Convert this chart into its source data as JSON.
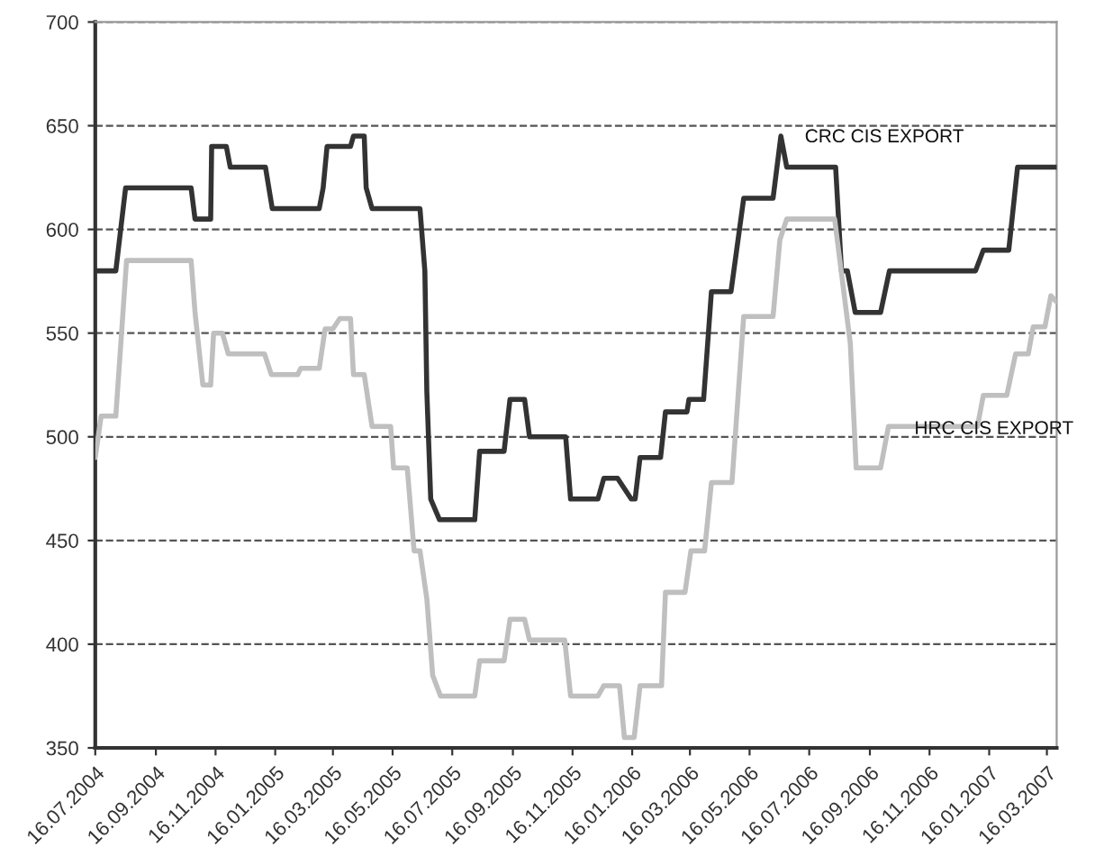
{
  "chart_data": {
    "type": "line",
    "xlim": [
      "2004-07-16",
      "2007-03-26"
    ],
    "ylim": [
      350,
      700
    ],
    "yticks": [
      350,
      400,
      450,
      500,
      550,
      600,
      650,
      700
    ],
    "xticks": [
      {
        "value": "2004-07-16",
        "label": "16.07.2004"
      },
      {
        "value": "2004-09-16",
        "label": "16.09.2004"
      },
      {
        "value": "2004-11-16",
        "label": "16.11.2004"
      },
      {
        "value": "2005-01-16",
        "label": "16.01.2005"
      },
      {
        "value": "2005-03-16",
        "label": "16.03.2005"
      },
      {
        "value": "2005-05-16",
        "label": "16.05.2005"
      },
      {
        "value": "2005-07-16",
        "label": "16.07.2005"
      },
      {
        "value": "2005-09-16",
        "label": "16.09.2005"
      },
      {
        "value": "2005-11-16",
        "label": "16.11.2005"
      },
      {
        "value": "2006-01-16",
        "label": "16.01.2006"
      },
      {
        "value": "2006-03-16",
        "label": "16.03.2006"
      },
      {
        "value": "2006-05-16",
        "label": "16.05.2006"
      },
      {
        "value": "2006-07-16",
        "label": "16.07.2006"
      },
      {
        "value": "2006-09-16",
        "label": "16.09.2006"
      },
      {
        "value": "2006-11-16",
        "label": "16.11.2006"
      },
      {
        "value": "2007-01-16",
        "label": "16.01.2007"
      },
      {
        "value": "2007-03-16",
        "label": "16.03.2007"
      }
    ],
    "grid": "y",
    "legend": false,
    "marker": "none",
    "line_style": "solid",
    "annotations": [
      "CRC CIS EXPORT",
      "HRC CIS EXPORT"
    ],
    "series": [
      {
        "color": "#333333",
        "x": [
          "2004-07-16",
          "2004-08-06",
          "2004-08-16",
          "2004-10-22",
          "2004-10-26",
          "2004-11-11",
          "2004-11-12",
          "2004-11-27",
          "2004-12-01",
          "2005-01-06",
          "2005-01-13",
          "2005-03-02",
          "2005-03-06",
          "2005-03-10",
          "2005-04-03",
          "2005-04-06",
          "2005-04-17",
          "2005-04-19",
          "2005-04-25",
          "2005-06-13",
          "2005-06-18",
          "2005-06-20",
          "2005-06-24",
          "2005-07-03",
          "2005-08-08",
          "2005-08-13",
          "2005-09-07",
          "2005-09-13",
          "2005-09-28",
          "2005-10-03",
          "2005-11-09",
          "2005-11-14",
          "2005-12-12",
          "2005-12-18",
          "2006-01-01",
          "2006-01-15",
          "2006-01-19",
          "2006-01-24",
          "2006-02-14",
          "2006-02-19",
          "2006-03-13",
          "2006-03-15",
          "2006-03-30",
          "2006-04-07",
          "2006-04-27",
          "2006-05-10",
          "2006-06-09",
          "2006-06-17",
          "2006-06-23",
          "2006-08-12",
          "2006-08-18",
          "2006-08-24",
          "2006-09-01",
          "2006-09-27",
          "2006-10-06",
          "2007-01-02",
          "2007-01-10",
          "2007-02-05",
          "2007-02-14",
          "2007-03-26"
        ],
        "values": [
          580,
          580,
          620,
          620,
          605,
          605,
          640,
          640,
          630,
          630,
          610,
          610,
          620,
          640,
          640,
          645,
          645,
          620,
          610,
          610,
          580,
          522,
          470,
          460,
          460,
          493,
          493,
          518,
          518,
          500,
          500,
          470,
          470,
          480,
          480,
          470,
          470,
          490,
          490,
          512,
          512,
          518,
          518,
          570,
          570,
          615,
          615,
          645,
          630,
          630,
          580,
          580,
          560,
          560,
          580,
          580,
          590,
          590,
          630,
          630
        ]
      },
      {
        "color": "#bfbfbf",
        "x": [
          "2004-07-16",
          "2004-07-22",
          "2004-08-06",
          "2004-08-17",
          "2004-10-22",
          "2004-10-26",
          "2004-11-03",
          "2004-11-11",
          "2004-11-14",
          "2004-11-23",
          "2004-11-29",
          "2005-01-05",
          "2005-01-12",
          "2005-02-08",
          "2005-02-11",
          "2005-03-02",
          "2005-03-08",
          "2005-03-16",
          "2005-03-23",
          "2005-04-03",
          "2005-04-06",
          "2005-04-17",
          "2005-04-25",
          "2005-05-14",
          "2005-05-17",
          "2005-05-31",
          "2005-06-07",
          "2005-06-13",
          "2005-06-20",
          "2005-06-26",
          "2005-07-04",
          "2005-08-08",
          "2005-08-13",
          "2005-09-07",
          "2005-09-13",
          "2005-09-28",
          "2005-10-03",
          "2005-11-08",
          "2005-11-14",
          "2005-12-12",
          "2005-12-18",
          "2006-01-03",
          "2006-01-08",
          "2006-01-18",
          "2006-01-24",
          "2006-02-15",
          "2006-02-19",
          "2006-03-11",
          "2006-03-17",
          "2006-03-31",
          "2006-04-07",
          "2006-04-28",
          "2006-05-10",
          "2006-06-09",
          "2006-06-16",
          "2006-06-23",
          "2006-08-11",
          "2006-08-27",
          "2006-09-02",
          "2006-09-27",
          "2006-10-05",
          "2007-01-04",
          "2007-01-10",
          "2007-02-03",
          "2007-02-12",
          "2007-02-25",
          "2007-03-02",
          "2007-03-14",
          "2007-03-20",
          "2007-03-26"
        ],
        "values": [
          490,
          510,
          510,
          585,
          585,
          560,
          525,
          525,
          550,
          550,
          540,
          540,
          530,
          530,
          533,
          533,
          552,
          552,
          557,
          557,
          530,
          530,
          505,
          505,
          485,
          485,
          445,
          445,
          422,
          385,
          375,
          375,
          392,
          392,
          412,
          412,
          402,
          402,
          375,
          375,
          380,
          380,
          355,
          355,
          380,
          380,
          425,
          425,
          445,
          445,
          478,
          478,
          558,
          558,
          595,
          605,
          605,
          545,
          485,
          485,
          505,
          505,
          520,
          520,
          540,
          540,
          553,
          553,
          568,
          565
        ]
      }
    ]
  }
}
